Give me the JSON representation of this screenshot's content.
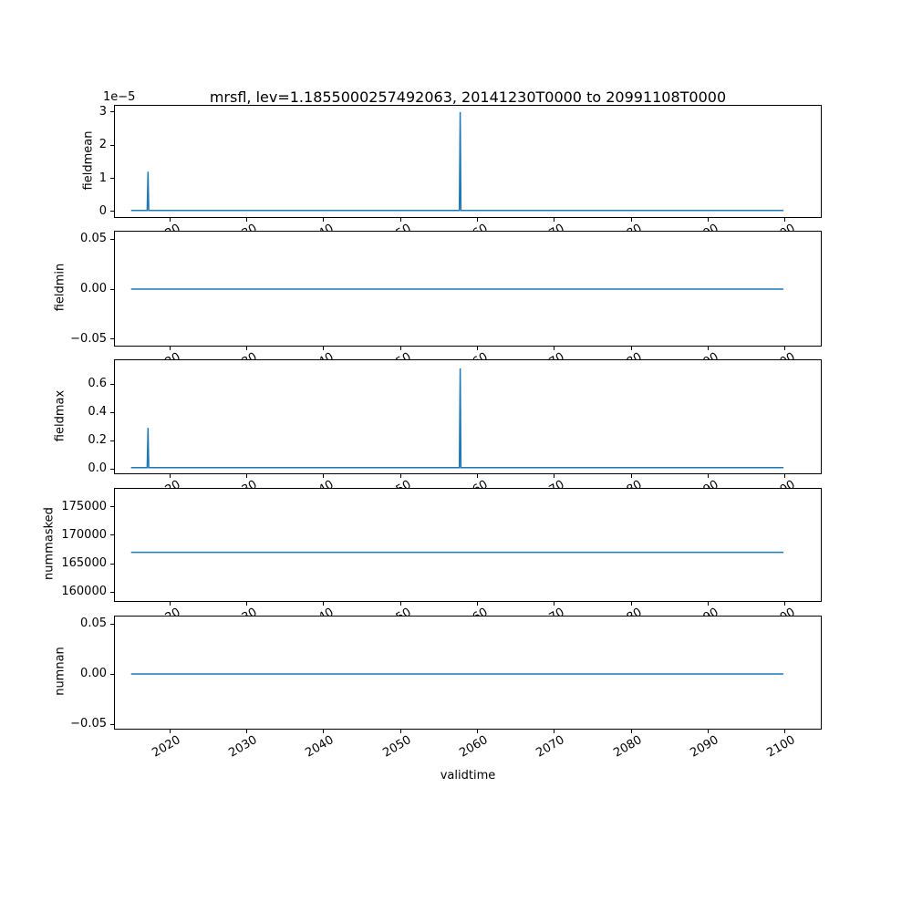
{
  "title": "mrsfl, lev=1.1855000257492063, 20141230T0000 to 20991108T0000",
  "xlabel": "validtime",
  "offset_text": "1e−5",
  "line_color": "#1f77b4",
  "xlim": [
    2012.9,
    2104.7
  ],
  "xticks": {
    "labels": [
      "2020",
      "2030",
      "2040",
      "2050",
      "2060",
      "2070",
      "2080",
      "2090",
      "2100"
    ],
    "values": [
      2020,
      2030,
      2040,
      2050,
      2060,
      2070,
      2080,
      2090,
      2100
    ]
  },
  "chart_data": [
    {
      "type": "line",
      "ylabel": "fieldmean",
      "ylim": [
        -1.7e-06,
        3.19e-05
      ],
      "yticks": [
        {
          "label": "3",
          "value": 3e-05
        },
        {
          "label": "2",
          "value": 2e-05
        },
        {
          "label": "1",
          "value": 1e-05
        },
        {
          "label": "0",
          "value": 0.0
        }
      ],
      "points": [
        [
          2015.0,
          3e-07
        ],
        [
          2017.1,
          3e-07
        ],
        [
          2017.2,
          1.2e-05
        ],
        [
          2017.3,
          3e-07
        ],
        [
          2057.7,
          3e-07
        ],
        [
          2057.8,
          3e-05
        ],
        [
          2057.9,
          3e-07
        ],
        [
          2099.85,
          3e-07
        ]
      ]
    },
    {
      "type": "line",
      "ylabel": "fieldmin",
      "ylim": [
        -0.0565,
        0.0575
      ],
      "yticks": [
        {
          "label": "0.05",
          "value": 0.05
        },
        {
          "label": "0.00",
          "value": 0.0
        },
        {
          "label": "−0.05",
          "value": -0.05
        }
      ],
      "points": [
        [
          2015.0,
          0.0
        ],
        [
          2099.85,
          0.0
        ]
      ]
    },
    {
      "type": "line",
      "ylabel": "fieldmax",
      "ylim": [
        -0.032,
        0.768
      ],
      "yticks": [
        {
          "label": "0.6",
          "value": 0.6
        },
        {
          "label": "0.4",
          "value": 0.4
        },
        {
          "label": "0.2",
          "value": 0.2
        },
        {
          "label": "0.0",
          "value": 0.0
        }
      ],
      "points": [
        [
          2015.0,
          0.008
        ],
        [
          2017.1,
          0.008
        ],
        [
          2017.2,
          0.29
        ],
        [
          2017.3,
          0.008
        ],
        [
          2057.7,
          0.008
        ],
        [
          2057.8,
          0.71
        ],
        [
          2057.9,
          0.008
        ],
        [
          2099.85,
          0.008
        ]
      ]
    },
    {
      "type": "line",
      "ylabel": "nummasked",
      "ylim": [
        158400,
        178200
      ],
      "yticks": [
        {
          "label": "175000",
          "value": 175000
        },
        {
          "label": "170000",
          "value": 170000
        },
        {
          "label": "165000",
          "value": 165000
        },
        {
          "label": "160000",
          "value": 160000
        }
      ],
      "points": [
        [
          2015.0,
          167000
        ],
        [
          2099.85,
          167000
        ]
      ]
    },
    {
      "type": "line",
      "ylabel": "numnan",
      "ylim": [
        -0.0545,
        0.0573
      ],
      "yticks": [
        {
          "label": "0.05",
          "value": 0.05
        },
        {
          "label": "0.00",
          "value": 0.0
        },
        {
          "label": "−0.05",
          "value": -0.05
        }
      ],
      "points": [
        [
          2015.0,
          0.0
        ],
        [
          2099.85,
          0.0
        ]
      ]
    }
  ]
}
